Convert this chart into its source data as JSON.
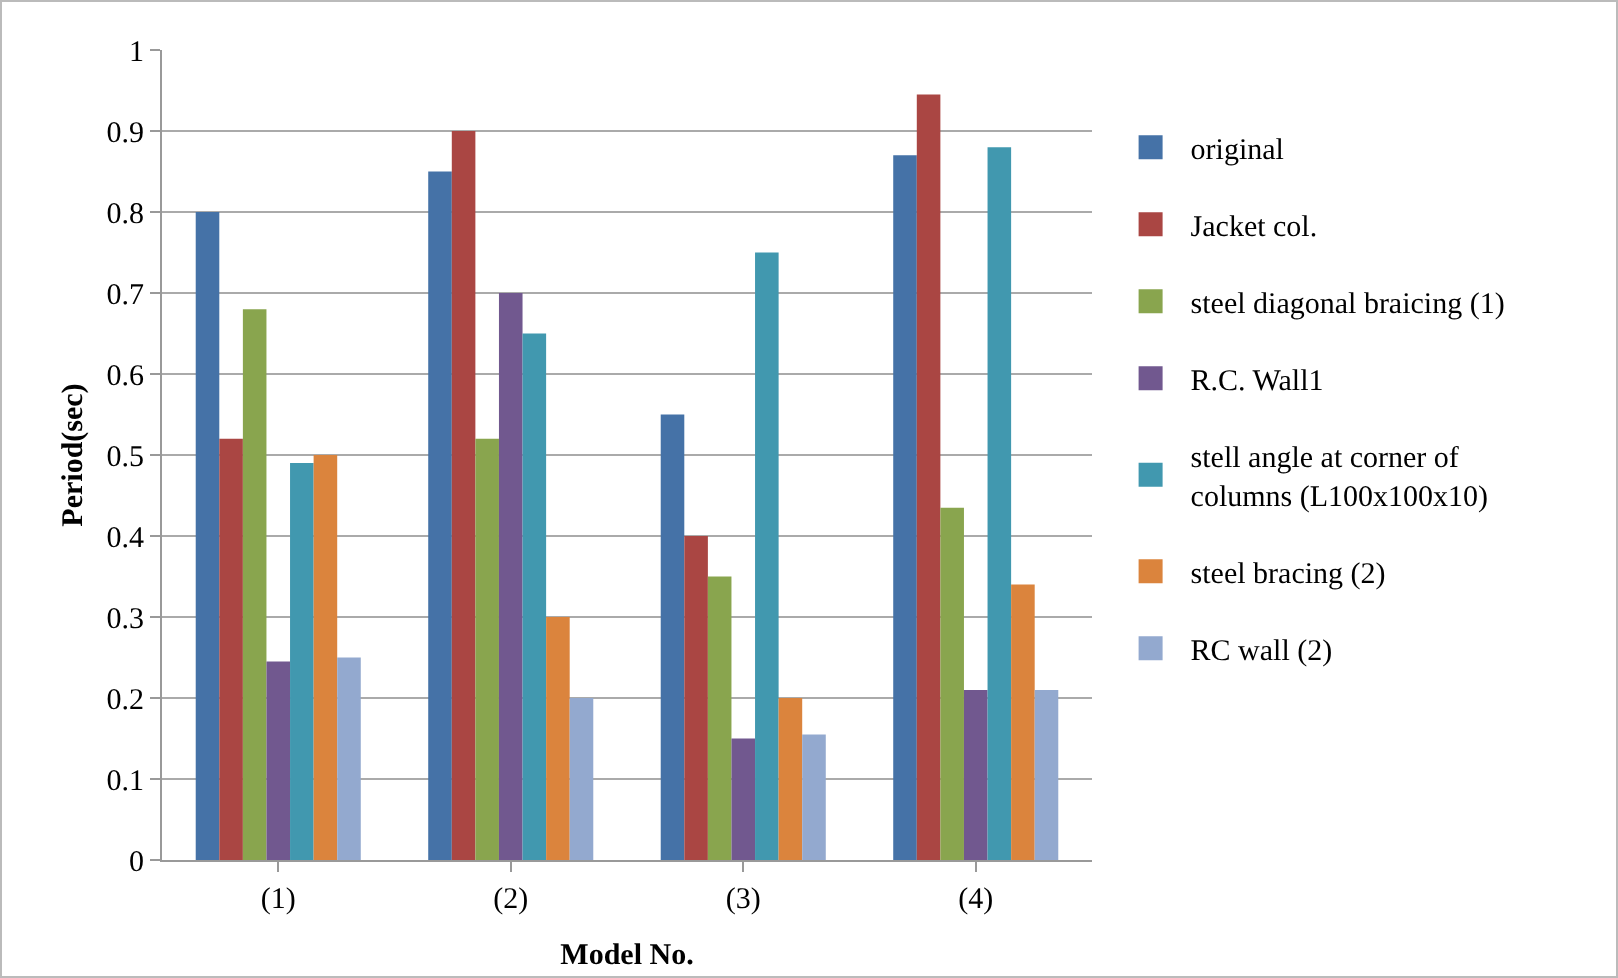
{
  "chart_data": {
    "type": "bar",
    "xlabel": "Model No.",
    "ylabel": "Period(sec)",
    "categories": [
      "(1)",
      "(2)",
      "(3)",
      "(4)"
    ],
    "series": [
      {
        "name": "original",
        "color": "#4572a7",
        "values": [
          0.8,
          0.85,
          0.55,
          0.87
        ]
      },
      {
        "name": "Jacket col.",
        "color": "#aa4643",
        "values": [
          0.52,
          0.9,
          0.4,
          0.945
        ]
      },
      {
        "name": "steel diagonal braicing (1)",
        "color": "#89a54e",
        "values": [
          0.68,
          0.52,
          0.35,
          0.435
        ]
      },
      {
        "name": "R.C. Wall1",
        "color": "#71588f",
        "values": [
          0.245,
          0.7,
          0.15,
          0.21
        ]
      },
      {
        "name": "stell angle at corner of columns (L100x100x10)",
        "color": "#4198af",
        "values": [
          0.49,
          0.65,
          0.75,
          0.88
        ]
      },
      {
        "name": "steel bracing (2)",
        "color": "#db843d",
        "values": [
          0.5,
          0.3,
          0.2,
          0.34
        ]
      },
      {
        "name": "RC wall (2)",
        "color": "#93a9cf",
        "values": [
          0.25,
          0.2,
          0.155,
          0.21
        ]
      }
    ],
    "ylim": [
      0,
      1
    ],
    "yticks": [
      0,
      0.1,
      0.2,
      0.3,
      0.4,
      0.5,
      0.6,
      0.7,
      0.8,
      0.9,
      1
    ],
    "grid": "y",
    "legend": "right"
  }
}
